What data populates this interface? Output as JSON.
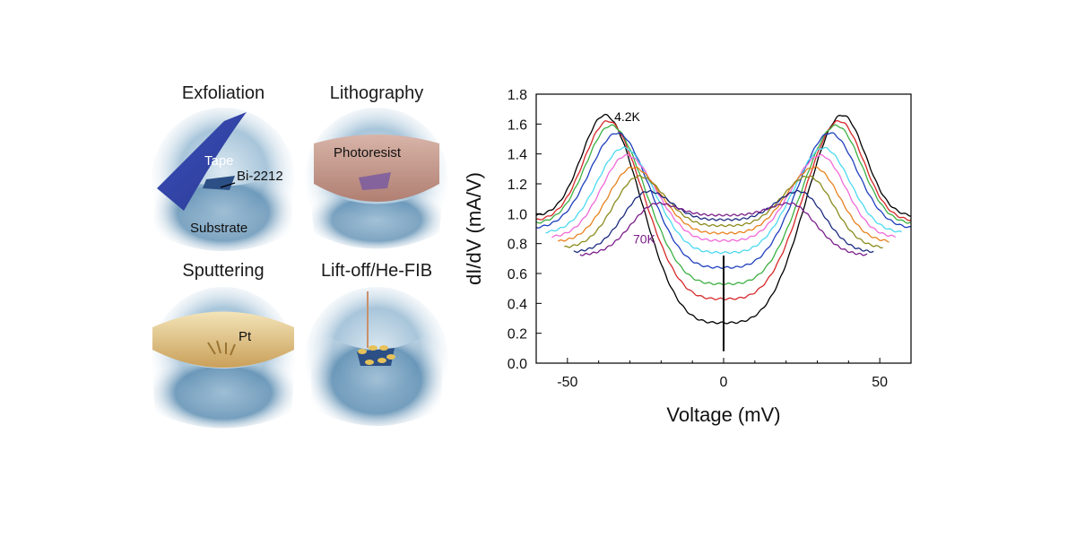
{
  "panels": [
    {
      "title": "Exfoliation",
      "labels": [
        "Tape",
        "Bi-2212",
        "Substrate"
      ]
    },
    {
      "title": "Lithography",
      "labels": [
        "Photoresist"
      ]
    },
    {
      "title": "Sputtering",
      "labels": [
        "Pt"
      ]
    },
    {
      "title": "Lift-off/He-FIB",
      "labels": []
    }
  ],
  "chart_data": {
    "type": "line",
    "title": "",
    "xlabel": "Voltage (mV)",
    "ylabel": "dI/dV (mA/V)",
    "xlim": [
      -60,
      60
    ],
    "ylim": [
      0.0,
      1.8
    ],
    "xticks": [
      -50,
      0,
      50
    ],
    "yticks": [
      0.0,
      0.2,
      0.4,
      0.6,
      0.8,
      1.0,
      1.2,
      1.4,
      1.6,
      1.8
    ],
    "xtick_labels": [
      "-50",
      "0",
      "50"
    ],
    "ytick_labels": [
      "0.0",
      "0.2",
      "0.4",
      "0.6",
      "0.8",
      "1.0",
      "1.2",
      "1.4",
      "1.6",
      "1.8"
    ],
    "grid": false,
    "legend": "none",
    "annotations": [
      {
        "text": "4.2K",
        "x": -35,
        "y": 1.62,
        "color": "#000000"
      },
      {
        "text": "70K",
        "x": -29,
        "y": 0.8,
        "color": "#7a1f8a"
      }
    ],
    "series": [
      {
        "color": "#000000",
        "peak_x": 38,
        "peak": 1.66,
        "zero": 0.27,
        "edge": 0.98,
        "x_extent": 60
      },
      {
        "color": "#d62728",
        "peak_x": 37,
        "peak": 1.62,
        "zero": 0.43,
        "edge": 0.95,
        "x_extent": 60
      },
      {
        "color": "#3cb043",
        "peak_x": 36,
        "peak": 1.59,
        "zero": 0.53,
        "edge": 0.93,
        "x_extent": 60
      },
      {
        "color": "#1f3fbf",
        "peak_x": 34,
        "peak": 1.54,
        "zero": 0.64,
        "edge": 0.9,
        "x_extent": 60
      },
      {
        "color": "#4dd9f0",
        "peak_x": 32,
        "peak": 1.44,
        "zero": 0.74,
        "edge": 0.87,
        "x_extent": 57
      },
      {
        "color": "#f06ad8",
        "peak_x": 31,
        "peak": 1.39,
        "zero": 0.82,
        "edge": 0.84,
        "x_extent": 55
      },
      {
        "color": "#e8821e",
        "peak_x": 29,
        "peak": 1.31,
        "zero": 0.87,
        "edge": 0.81,
        "x_extent": 53
      },
      {
        "color": "#8b8b1e",
        "peak_x": 27,
        "peak": 1.25,
        "zero": 0.92,
        "edge": 0.77,
        "x_extent": 51
      },
      {
        "color": "#1c2b80",
        "peak_x": 24,
        "peak": 1.15,
        "zero": 0.96,
        "edge": 0.74,
        "x_extent": 48
      },
      {
        "color": "#7a1f8a",
        "peak_x": 21,
        "peak": 1.07,
        "zero": 0.99,
        "edge": 0.72,
        "x_extent": 46
      }
    ]
  }
}
